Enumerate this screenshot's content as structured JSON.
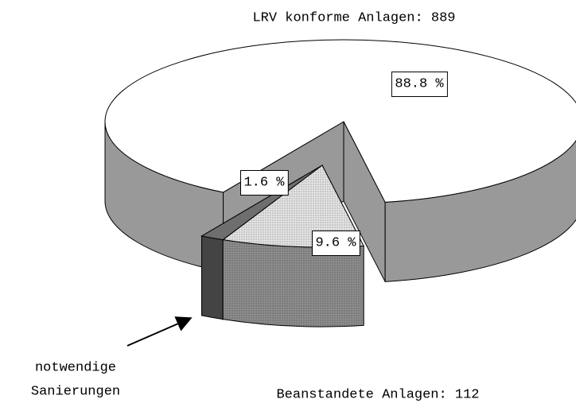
{
  "chart_data": {
    "type": "pie3d",
    "values": [
      88.8,
      9.6,
      1.6
    ],
    "value_labels": [
      "88.8 %",
      "9.6 %",
      "1.6 %"
    ],
    "colors": [
      "#ffffff",
      "#e4e4e4",
      "#6e6e6e"
    ],
    "annotations": {
      "top": "LRV konforme Anlagen: 889",
      "bottom": "Beanstandete Anlagen: 112",
      "arrow": [
        "notwendige",
        "Sanierungen"
      ]
    }
  }
}
